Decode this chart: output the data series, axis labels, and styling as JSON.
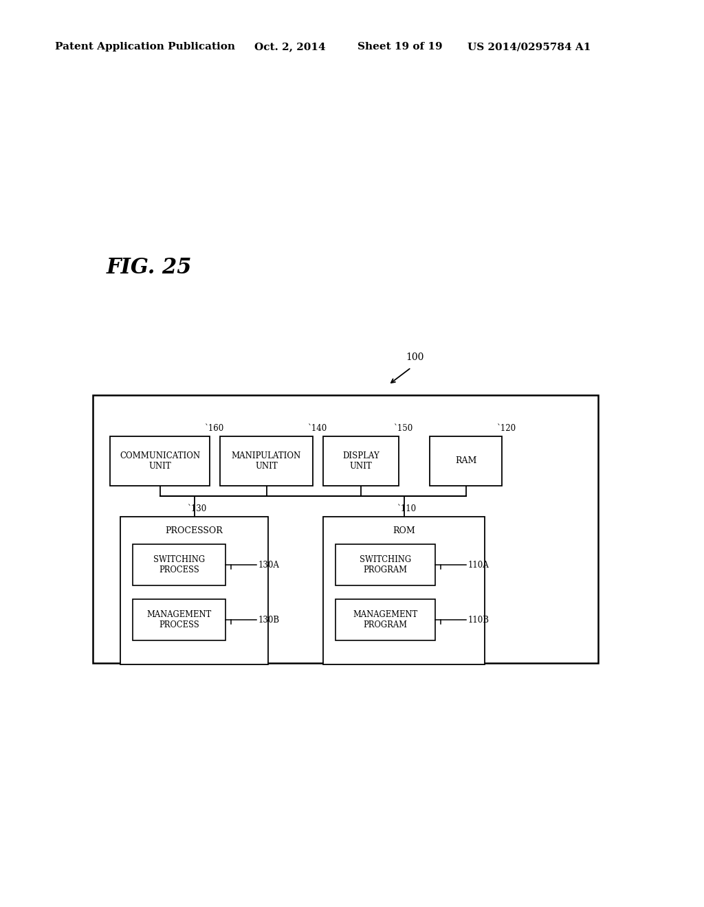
{
  "background_color": "#ffffff",
  "header_text": "Patent Application Publication",
  "header_date": "Oct. 2, 2014",
  "header_sheet": "Sheet 19 of 19",
  "header_patent": "US 2014/0295784 A1",
  "fig_label": "FIG. 25",
  "label_100": "100"
}
